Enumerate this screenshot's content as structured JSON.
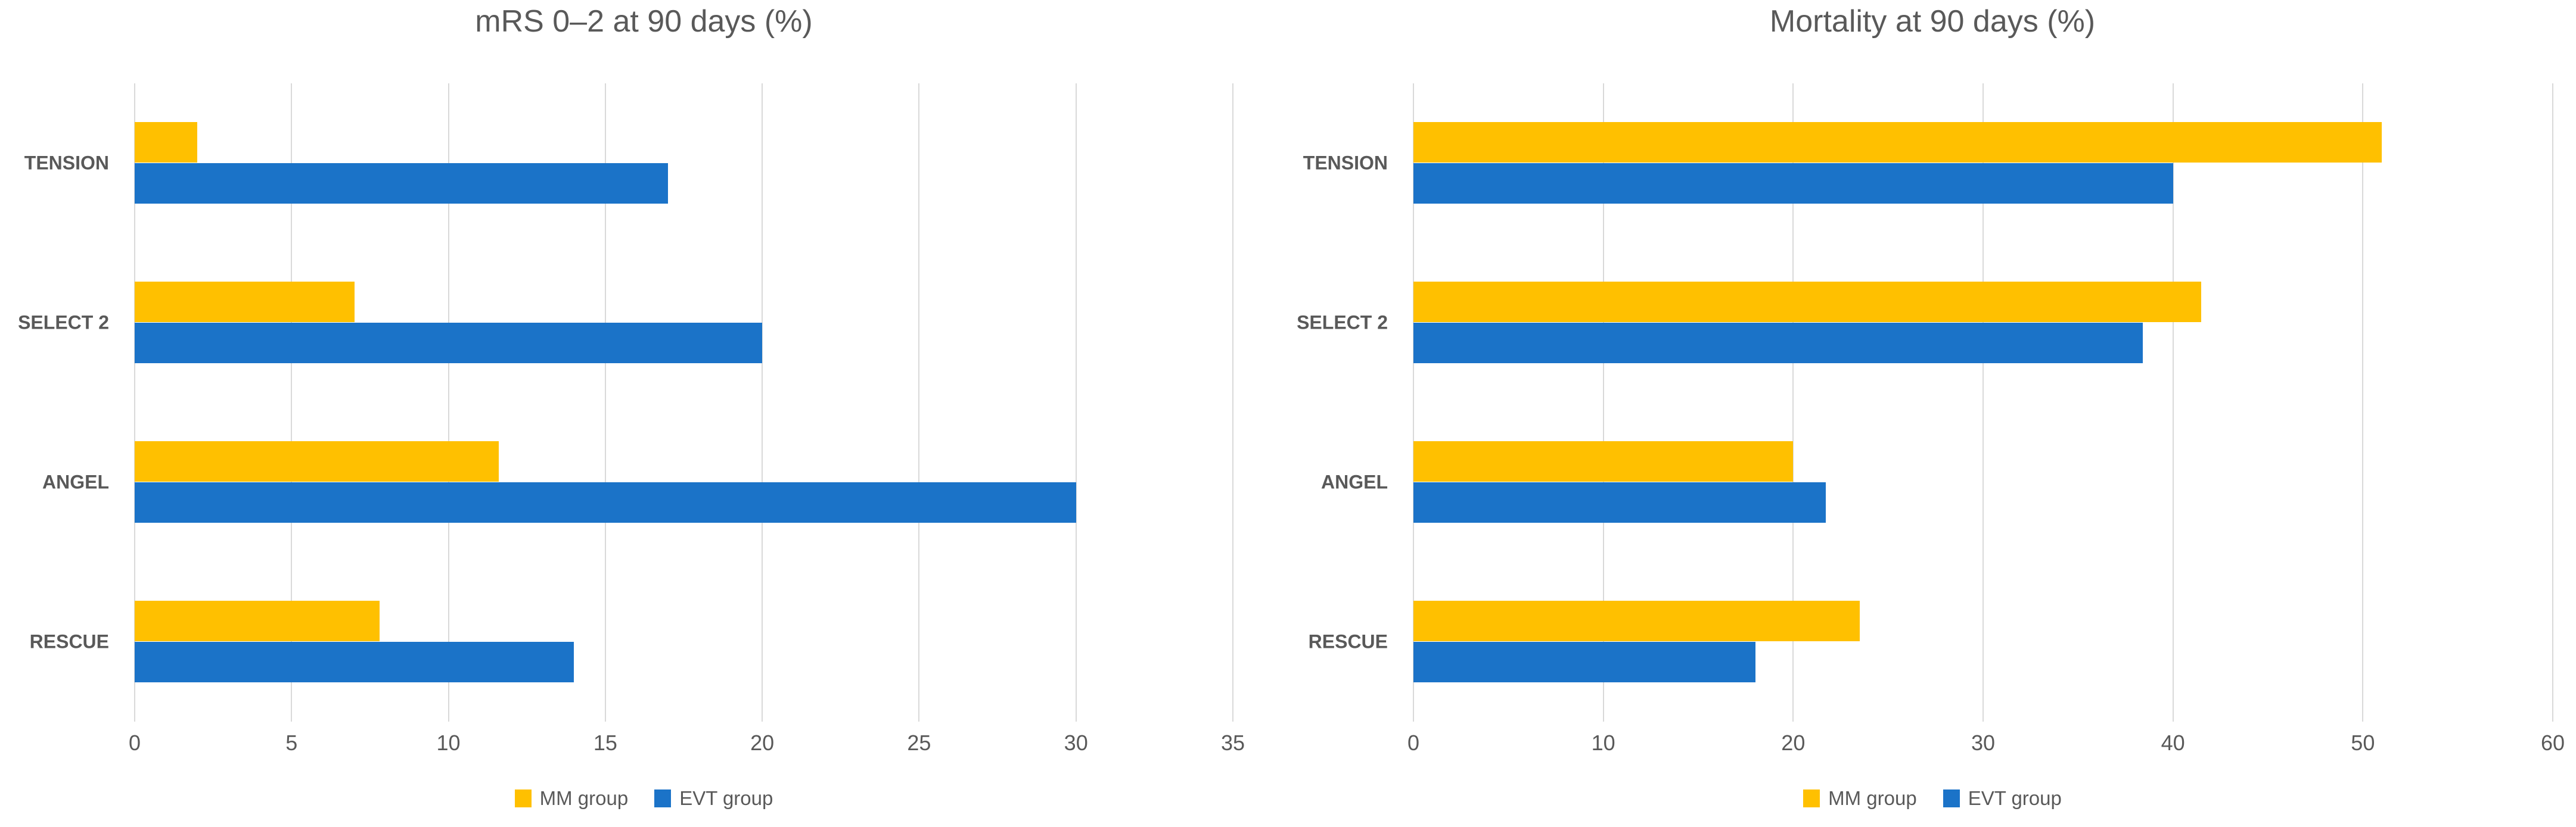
{
  "figure": {
    "background": "#FFFFFF"
  },
  "palette": {
    "mm_group": "#FFC000",
    "evt_group": "#1B73C8",
    "gridline": "#D9D9D9",
    "text": "#595959"
  },
  "chart_data": [
    {
      "type": "bar",
      "orientation": "horizontal",
      "title": "mRS 0–2 at 90 days (%)",
      "categories": [
        "TENSION",
        "SELECT 2",
        "ANGEL",
        "RESCUE"
      ],
      "series": [
        {
          "name": "MM group",
          "color": "#FFC000",
          "values": [
            2,
            7,
            11.6,
            7.8
          ]
        },
        {
          "name": "EVT group",
          "color": "#1B73C8",
          "values": [
            17,
            20,
            30,
            14
          ]
        }
      ],
      "xlim": [
        0,
        35
      ],
      "xtick_step": 5,
      "xticks": [
        0,
        5,
        10,
        15,
        20,
        25,
        30,
        35
      ],
      "grid": true,
      "legend_position": "bottom"
    },
    {
      "type": "bar",
      "orientation": "horizontal",
      "title": "Mortality at 90 days (%)",
      "categories": [
        "TENSION",
        "SELECT 2",
        "ANGEL",
        "RESCUE"
      ],
      "series": [
        {
          "name": "MM group",
          "color": "#FFC000",
          "values": [
            51,
            41.5,
            20,
            23.5
          ]
        },
        {
          "name": "EVT group",
          "color": "#1B73C8",
          "values": [
            40,
            38.4,
            21.7,
            18
          ]
        }
      ],
      "xlim": [
        0,
        60
      ],
      "xtick_step": 10,
      "xticks": [
        0,
        10,
        20,
        30,
        40,
        50,
        60
      ],
      "grid": true,
      "legend_position": "bottom"
    }
  ]
}
